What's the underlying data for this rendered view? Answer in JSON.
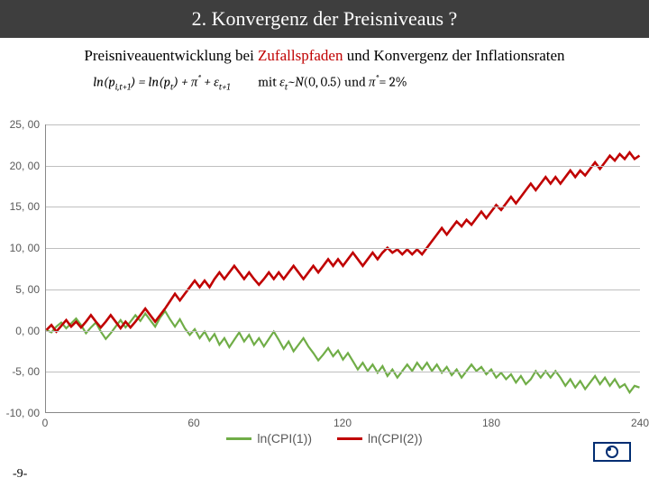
{
  "header": {
    "title": "2. Konvergenz der Preisniveaus ?"
  },
  "subtitle": {
    "prefix": "Preisniveauentwicklung bei ",
    "highlight": "Zufallspfaden",
    "suffix": " und Konvergenz der Inflationsraten"
  },
  "formula": {
    "text": "ln(p_{i,t+1}) = ln(p_t) + π* + ε_{t+1}    mit ε_t ~ N(0, 0.5) und π* = 2%"
  },
  "chart": {
    "type": "line",
    "background_color": "#ffffff",
    "grid_color": "#bfbfbf",
    "axis_color": "#888888",
    "tick_fontsize": 12,
    "tick_color": "#595959",
    "xlim": [
      0,
      240
    ],
    "ylim": [
      -10,
      25
    ],
    "xticks": [
      0,
      60,
      120,
      180,
      240
    ],
    "xtick_labels": [
      "0",
      "60",
      "120",
      "180",
      "240"
    ],
    "yticks": [
      -10,
      -5,
      0,
      5,
      10,
      15,
      20,
      25
    ],
    "ytick_labels": [
      "-10, 00",
      "-5, 00",
      "0, 00",
      "5, 00",
      "10, 00",
      "15, 00",
      "20, 00",
      "25, 00"
    ],
    "series": [
      {
        "name": "ln(CPI(1))",
        "color": "#70ad47",
        "line_width": 2.2,
        "data": [
          [
            0,
            0.0
          ],
          [
            2,
            -0.3
          ],
          [
            4,
            0.4
          ],
          [
            6,
            0.9
          ],
          [
            8,
            0.2
          ],
          [
            10,
            0.8
          ],
          [
            12,
            1.4
          ],
          [
            14,
            0.6
          ],
          [
            16,
            -0.4
          ],
          [
            18,
            0.3
          ],
          [
            20,
            0.9
          ],
          [
            22,
            -0.2
          ],
          [
            24,
            -1.1
          ],
          [
            26,
            -0.4
          ],
          [
            28,
            0.4
          ],
          [
            30,
            1.2
          ],
          [
            32,
            0.3
          ],
          [
            34,
            1.0
          ],
          [
            36,
            1.8
          ],
          [
            38,
            1.1
          ],
          [
            40,
            2.0
          ],
          [
            42,
            1.2
          ],
          [
            44,
            0.4
          ],
          [
            46,
            1.5
          ],
          [
            48,
            2.3
          ],
          [
            50,
            1.3
          ],
          [
            52,
            0.4
          ],
          [
            54,
            1.3
          ],
          [
            56,
            0.2
          ],
          [
            58,
            -0.6
          ],
          [
            60,
            0.1
          ],
          [
            62,
            -1.0
          ],
          [
            64,
            -0.2
          ],
          [
            66,
            -1.3
          ],
          [
            68,
            -0.5
          ],
          [
            70,
            -1.8
          ],
          [
            72,
            -1.0
          ],
          [
            74,
            -2.1
          ],
          [
            76,
            -1.2
          ],
          [
            78,
            -0.3
          ],
          [
            80,
            -1.4
          ],
          [
            82,
            -0.6
          ],
          [
            84,
            -1.8
          ],
          [
            86,
            -1.0
          ],
          [
            88,
            -2.0
          ],
          [
            90,
            -1.1
          ],
          [
            92,
            -0.2
          ],
          [
            94,
            -1.2
          ],
          [
            96,
            -2.3
          ],
          [
            98,
            -1.4
          ],
          [
            100,
            -2.6
          ],
          [
            102,
            -1.8
          ],
          [
            104,
            -1.0
          ],
          [
            106,
            -2.0
          ],
          [
            108,
            -2.8
          ],
          [
            110,
            -3.7
          ],
          [
            112,
            -3.0
          ],
          [
            114,
            -2.2
          ],
          [
            116,
            -3.2
          ],
          [
            118,
            -2.5
          ],
          [
            120,
            -3.6
          ],
          [
            122,
            -2.8
          ],
          [
            124,
            -3.8
          ],
          [
            126,
            -4.8
          ],
          [
            128,
            -4.0
          ],
          [
            130,
            -5.0
          ],
          [
            132,
            -4.2
          ],
          [
            134,
            -5.2
          ],
          [
            136,
            -4.4
          ],
          [
            138,
            -5.6
          ],
          [
            140,
            -4.8
          ],
          [
            142,
            -5.8
          ],
          [
            144,
            -5.0
          ],
          [
            146,
            -4.2
          ],
          [
            148,
            -5.0
          ],
          [
            150,
            -4.0
          ],
          [
            152,
            -4.8
          ],
          [
            154,
            -4.0
          ],
          [
            156,
            -5.0
          ],
          [
            158,
            -4.2
          ],
          [
            160,
            -5.2
          ],
          [
            162,
            -4.5
          ],
          [
            164,
            -5.5
          ],
          [
            166,
            -4.8
          ],
          [
            168,
            -5.8
          ],
          [
            170,
            -5.0
          ],
          [
            172,
            -4.2
          ],
          [
            174,
            -5.0
          ],
          [
            176,
            -4.5
          ],
          [
            178,
            -5.4
          ],
          [
            180,
            -4.8
          ],
          [
            182,
            -5.8
          ],
          [
            184,
            -5.2
          ],
          [
            186,
            -6.0
          ],
          [
            188,
            -5.4
          ],
          [
            190,
            -6.4
          ],
          [
            192,
            -5.6
          ],
          [
            194,
            -6.6
          ],
          [
            196,
            -6.0
          ],
          [
            198,
            -5.0
          ],
          [
            200,
            -5.8
          ],
          [
            202,
            -5.0
          ],
          [
            204,
            -5.8
          ],
          [
            206,
            -5.0
          ],
          [
            208,
            -5.8
          ],
          [
            210,
            -6.8
          ],
          [
            212,
            -6.0
          ],
          [
            214,
            -7.0
          ],
          [
            216,
            -6.2
          ],
          [
            218,
            -7.2
          ],
          [
            220,
            -6.4
          ],
          [
            222,
            -5.6
          ],
          [
            224,
            -6.6
          ],
          [
            226,
            -5.8
          ],
          [
            228,
            -6.8
          ],
          [
            230,
            -6.0
          ],
          [
            232,
            -7.0
          ],
          [
            234,
            -6.6
          ],
          [
            236,
            -7.6
          ],
          [
            238,
            -6.8
          ],
          [
            240,
            -7.0
          ]
        ]
      },
      {
        "name": "ln(CPI(2))",
        "color": "#c00000",
        "line_width": 2.6,
        "data": [
          [
            0,
            0.0
          ],
          [
            2,
            0.6
          ],
          [
            4,
            -0.2
          ],
          [
            6,
            0.5
          ],
          [
            8,
            1.2
          ],
          [
            10,
            0.4
          ],
          [
            12,
            1.0
          ],
          [
            14,
            0.3
          ],
          [
            16,
            1.0
          ],
          [
            18,
            1.8
          ],
          [
            20,
            1.0
          ],
          [
            22,
            0.3
          ],
          [
            24,
            1.0
          ],
          [
            26,
            1.8
          ],
          [
            28,
            1.0
          ],
          [
            30,
            0.2
          ],
          [
            32,
            1.0
          ],
          [
            34,
            0.3
          ],
          [
            36,
            1.0
          ],
          [
            38,
            1.8
          ],
          [
            40,
            2.6
          ],
          [
            42,
            1.8
          ],
          [
            44,
            1.0
          ],
          [
            46,
            1.8
          ],
          [
            48,
            2.6
          ],
          [
            50,
            3.5
          ],
          [
            52,
            4.4
          ],
          [
            54,
            3.6
          ],
          [
            56,
            4.4
          ],
          [
            58,
            5.2
          ],
          [
            60,
            6.0
          ],
          [
            62,
            5.2
          ],
          [
            64,
            6.0
          ],
          [
            66,
            5.2
          ],
          [
            68,
            6.2
          ],
          [
            70,
            7.0
          ],
          [
            72,
            6.2
          ],
          [
            74,
            7.0
          ],
          [
            76,
            7.8
          ],
          [
            78,
            7.0
          ],
          [
            80,
            6.2
          ],
          [
            82,
            7.0
          ],
          [
            84,
            6.2
          ],
          [
            86,
            5.5
          ],
          [
            88,
            6.2
          ],
          [
            90,
            7.0
          ],
          [
            92,
            6.2
          ],
          [
            94,
            7.0
          ],
          [
            96,
            6.2
          ],
          [
            98,
            7.0
          ],
          [
            100,
            7.8
          ],
          [
            102,
            7.0
          ],
          [
            104,
            6.2
          ],
          [
            106,
            7.0
          ],
          [
            108,
            7.8
          ],
          [
            110,
            7.0
          ],
          [
            112,
            7.8
          ],
          [
            114,
            8.6
          ],
          [
            116,
            7.8
          ],
          [
            118,
            8.6
          ],
          [
            120,
            7.8
          ],
          [
            122,
            8.6
          ],
          [
            124,
            9.4
          ],
          [
            126,
            8.6
          ],
          [
            128,
            7.8
          ],
          [
            130,
            8.6
          ],
          [
            132,
            9.4
          ],
          [
            134,
            8.6
          ],
          [
            136,
            9.4
          ],
          [
            138,
            10.0
          ],
          [
            140,
            9.4
          ],
          [
            142,
            9.8
          ],
          [
            144,
            9.2
          ],
          [
            146,
            9.8
          ],
          [
            148,
            9.2
          ],
          [
            150,
            9.8
          ],
          [
            152,
            9.2
          ],
          [
            154,
            10.0
          ],
          [
            156,
            10.8
          ],
          [
            158,
            11.6
          ],
          [
            160,
            12.4
          ],
          [
            162,
            11.6
          ],
          [
            164,
            12.4
          ],
          [
            166,
            13.2
          ],
          [
            168,
            12.6
          ],
          [
            170,
            13.4
          ],
          [
            172,
            12.8
          ],
          [
            174,
            13.6
          ],
          [
            176,
            14.4
          ],
          [
            178,
            13.6
          ],
          [
            180,
            14.4
          ],
          [
            182,
            15.2
          ],
          [
            184,
            14.6
          ],
          [
            186,
            15.4
          ],
          [
            188,
            16.2
          ],
          [
            190,
            15.4
          ],
          [
            192,
            16.2
          ],
          [
            194,
            17.0
          ],
          [
            196,
            17.8
          ],
          [
            198,
            17.0
          ],
          [
            200,
            17.8
          ],
          [
            202,
            18.6
          ],
          [
            204,
            17.8
          ],
          [
            206,
            18.6
          ],
          [
            208,
            17.8
          ],
          [
            210,
            18.6
          ],
          [
            212,
            19.4
          ],
          [
            214,
            18.6
          ],
          [
            216,
            19.4
          ],
          [
            218,
            18.8
          ],
          [
            220,
            19.6
          ],
          [
            222,
            20.4
          ],
          [
            224,
            19.6
          ],
          [
            226,
            20.4
          ],
          [
            228,
            21.2
          ],
          [
            230,
            20.6
          ],
          [
            232,
            21.4
          ],
          [
            234,
            20.8
          ],
          [
            236,
            21.6
          ],
          [
            238,
            20.8
          ],
          [
            240,
            21.2
          ]
        ]
      }
    ],
    "legend": {
      "position": "bottom",
      "fontsize": 14,
      "items": [
        {
          "label": "ln(CPI(1))",
          "color": "#70ad47"
        },
        {
          "label": "ln(CPI(2))",
          "color": "#c00000"
        }
      ]
    }
  },
  "page_number": "-9-"
}
